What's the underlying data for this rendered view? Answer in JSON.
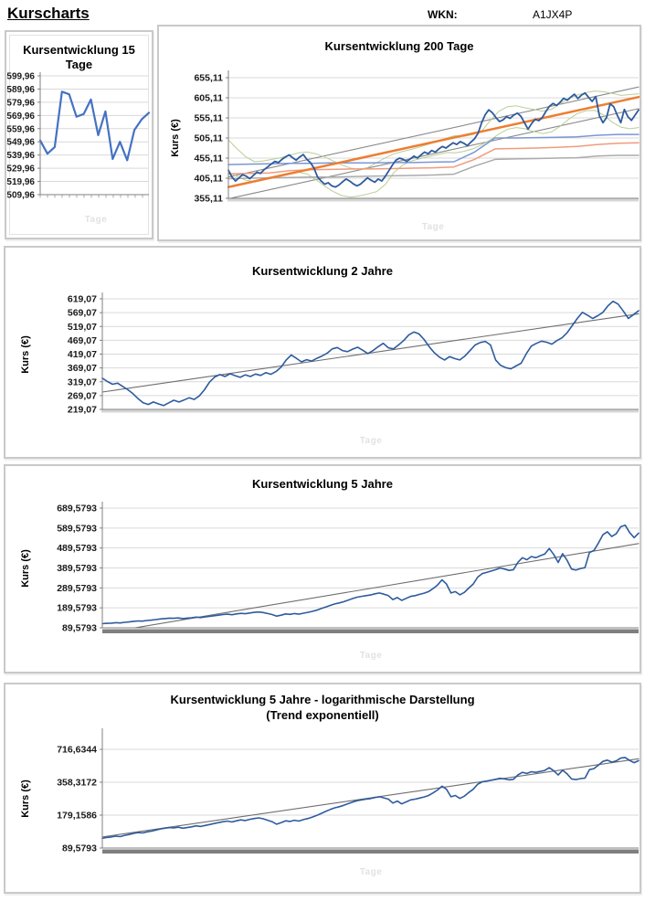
{
  "page": {
    "heading": "Kurscharts",
    "wkn_label": "WKN:",
    "wkn_value": "A1JX4P"
  },
  "ylabel": "Kurs (€)",
  "watermark": "Tage",
  "colors": {
    "price_blue": "#2e5b9e",
    "price_blue_small": "#4472c4",
    "trend_orange": "#ed7d31",
    "trend_gray": "#6e6e6e",
    "band_green": "#b8cf96",
    "level_blue": "#7b96d4",
    "level_salmon": "#f19b7d",
    "level_gray": "#ababab",
    "gridline": "#d9d9d9",
    "axis": "#808080",
    "tick_text": "#1a1a1a",
    "baseline_bar": "#7f7f7f"
  },
  "chart_data": [
    {
      "type": "line",
      "title": "Kursentwicklung 15 Tage",
      "xlabel": "Tage",
      "scale": "linear",
      "axis_style": "comb",
      "comb_step": 8,
      "yticks": [
        {
          "label": "599,96",
          "value": 599.96
        },
        {
          "label": "589,96",
          "value": 589.96
        },
        {
          "label": "579,96",
          "value": 579.96
        },
        {
          "label": "569,96",
          "value": 569.96
        },
        {
          "label": "559,96",
          "value": 559.96
        },
        {
          "label": "549,96",
          "value": 549.96
        },
        {
          "label": "539,96",
          "value": 539.96
        },
        {
          "label": "529,96",
          "value": 529.96
        },
        {
          "label": "519,96",
          "value": 519.96
        },
        {
          "label": "509,96",
          "value": 509.96
        }
      ],
      "series": [
        {
          "name": "kurs",
          "color": "#4472c4",
          "width": 2.2,
          "values": [
            551,
            541,
            546,
            588,
            586,
            569,
            571,
            582,
            555,
            573,
            537,
            550,
            536,
            559,
            567,
            572
          ]
        }
      ]
    },
    {
      "type": "line",
      "title": "Kursentwicklung 200 Tage",
      "xlabel": "Tage",
      "scale": "linear",
      "axis_style": "comb",
      "comb_step": 2,
      "yticks": [
        {
          "label": "655,11",
          "value": 655.11
        },
        {
          "label": "605,11",
          "value": 605.11
        },
        {
          "label": "555,11",
          "value": 555.11
        },
        {
          "label": "505,11",
          "value": 505.11
        },
        {
          "label": "455,11",
          "value": 455.11
        },
        {
          "label": "405,11",
          "value": 405.11
        },
        {
          "label": "355,11",
          "value": 355.11
        }
      ],
      "series": [
        {
          "name": "kanal-oben",
          "color": "#8a8a8a",
          "width": 1.1,
          "values": [
            408,
            632
          ]
        },
        {
          "name": "kanal-unten",
          "color": "#8a8a8a",
          "width": 1.1,
          "values": [
            354,
            578
          ]
        },
        {
          "name": "band-oben",
          "color": "#b8cf96",
          "width": 1,
          "values": [
            500,
            478,
            458,
            446,
            448,
            452,
            456,
            462,
            468,
            470,
            466,
            458,
            448,
            438,
            430,
            427,
            432,
            444,
            456,
            466,
            472,
            477,
            483,
            490,
            497,
            505,
            511,
            509,
            514,
            522,
            548,
            572,
            583,
            585,
            580,
            576,
            572,
            576,
            590,
            604,
            612,
            618,
            622,
            620,
            616,
            611,
            613,
            615
          ]
        },
        {
          "name": "band-unten",
          "color": "#b8cf96",
          "width": 1,
          "values": [
            420,
            409,
            400,
            397,
            401,
            407,
            413,
            418,
            420,
            416,
            402,
            386,
            372,
            362,
            358,
            361,
            366,
            372,
            390,
            420,
            438,
            448,
            454,
            459,
            464,
            469,
            468,
            472,
            478,
            488,
            500,
            515,
            527,
            531,
            528,
            521,
            516,
            520,
            534,
            552,
            566,
            573,
            574,
            562,
            544,
            532,
            528,
            531
          ]
        },
        {
          "name": "level-grau",
          "color": "#ababab",
          "width": 1.5,
          "values": [
            404,
            405,
            406,
            407,
            408,
            408,
            409,
            410,
            411,
            412,
            413,
            415,
            435,
            452,
            453,
            454,
            455,
            456,
            460,
            462,
            462
          ]
        },
        {
          "name": "level-rot",
          "color": "#f19b7d",
          "width": 1.5,
          "values": [
            416,
            417,
            418,
            424,
            426,
            427,
            428,
            428,
            429,
            430,
            431,
            433,
            452,
            478,
            479,
            480,
            482,
            484,
            489,
            492,
            493
          ]
        },
        {
          "name": "level-blau",
          "color": "#7b96d4",
          "width": 1.5,
          "values": [
            439,
            440,
            441,
            442,
            442,
            443,
            443,
            443,
            444,
            444,
            445,
            446,
            470,
            505,
            505,
            506,
            507,
            508,
            512,
            514,
            514
          ]
        },
        {
          "name": "trend",
          "color": "#ed7d31",
          "width": 2.5,
          "values": [
            383,
            607
          ]
        },
        {
          "name": "kurs",
          "color": "#2e5b9e",
          "width": 1.8,
          "values": [
            425,
            408,
            398,
            406,
            414,
            410,
            404,
            412,
            420,
            417,
            426,
            433,
            440,
            447,
            444,
            452,
            458,
            463,
            456,
            450,
            458,
            464,
            452,
            444,
            430,
            408,
            398,
            390,
            394,
            386,
            383,
            388,
            396,
            403,
            398,
            391,
            386,
            390,
            398,
            406,
            400,
            395,
            403,
            398,
            410,
            424,
            438,
            450,
            455,
            452,
            447,
            453,
            460,
            455,
            463,
            470,
            466,
            474,
            470,
            478,
            484,
            480,
            487,
            493,
            489,
            496,
            492,
            486,
            495,
            503,
            517,
            543,
            563,
            575,
            568,
            556,
            546,
            550,
            558,
            554,
            562,
            567,
            559,
            543,
            527,
            541,
            552,
            548,
            556,
            571,
            584,
            591,
            586,
            594,
            604,
            599,
            607,
            614,
            603,
            612,
            617,
            606,
            596,
            608,
            560,
            543,
            556,
            590,
            583,
            562,
            543,
            576,
            558,
            549,
            562,
            575
          ]
        }
      ]
    },
    {
      "type": "line",
      "title": "Kursentwicklung 2 Jahre",
      "xlabel": "Tage",
      "scale": "linear",
      "axis_style": "comb",
      "comb_step": 2,
      "yticks": [
        {
          "label": "619,07",
          "value": 619.07
        },
        {
          "label": "569,07",
          "value": 569.07
        },
        {
          "label": "519,07",
          "value": 519.07
        },
        {
          "label": "469,07",
          "value": 469.07
        },
        {
          "label": "419,07",
          "value": 419.07
        },
        {
          "label": "369,07",
          "value": 369.07
        },
        {
          "label": "319,07",
          "value": 319.07
        },
        {
          "label": "269,07",
          "value": 269.07
        },
        {
          "label": "219,07",
          "value": 219.07
        }
      ],
      "series": [
        {
          "name": "trend",
          "color": "#6e6e6e",
          "width": 1.1,
          "values": [
            282,
            565
          ]
        },
        {
          "name": "kurs",
          "color": "#2e5b9e",
          "width": 1.6,
          "values": [
            332,
            320,
            310,
            314,
            302,
            290,
            276,
            258,
            243,
            237,
            246,
            239,
            233,
            243,
            252,
            246,
            253,
            261,
            255,
            268,
            290,
            318,
            336,
            345,
            338,
            348,
            341,
            335,
            344,
            338,
            347,
            342,
            352,
            346,
            356,
            372,
            398,
            416,
            404,
            391,
            399,
            394,
            404,
            412,
            422,
            438,
            443,
            432,
            428,
            437,
            444,
            433,
            421,
            432,
            446,
            458,
            442,
            438,
            452,
            468,
            488,
            499,
            492,
            472,
            446,
            424,
            408,
            398,
            410,
            403,
            398,
            412,
            432,
            452,
            461,
            465,
            452,
            398,
            378,
            370,
            366,
            376,
            386,
            420,
            448,
            458,
            466,
            462,
            455,
            468,
            478,
            496,
            522,
            548,
            570,
            560,
            548,
            558,
            570,
            594,
            610,
            600,
            575,
            548,
            562,
            576
          ]
        }
      ]
    },
    {
      "type": "line",
      "title": "Kursentwicklung 5 Jahre",
      "xlabel": "Tage",
      "scale": "linear",
      "axis_style": "bar",
      "yticks": [
        {
          "label": "689,5793",
          "value": 689.5793
        },
        {
          "label": "589,5793",
          "value": 589.5793
        },
        {
          "label": "489,5793",
          "value": 489.5793
        },
        {
          "label": "389,5793",
          "value": 389.5793
        },
        {
          "label": "289,5793",
          "value": 289.5793
        },
        {
          "label": "189,5793",
          "value": 189.5793
        },
        {
          "label": "89,5793",
          "value": 89.5793
        }
      ],
      "series": [
        {
          "name": "trend",
          "color": "#6e6e6e",
          "width": 1.1,
          "values": [
            62,
            512
          ]
        },
        {
          "name": "kurs",
          "color": "#2e5b9e",
          "width": 1.6,
          "values": [
            110,
            112,
            113,
            115,
            114,
            117,
            119,
            122,
            124,
            123,
            126,
            128,
            131,
            134,
            136,
            138,
            137,
            139,
            136,
            138,
            140,
            143,
            141,
            144,
            147,
            150,
            153,
            156,
            158,
            155,
            159,
            162,
            160,
            164,
            167,
            169,
            166,
            161,
            156,
            148,
            153,
            159,
            157,
            161,
            158,
            163,
            167,
            172,
            178,
            186,
            194,
            202,
            209,
            214,
            220,
            228,
            236,
            243,
            247,
            251,
            254,
            260,
            264,
            258,
            251,
            231,
            241,
            227,
            237,
            247,
            251,
            257,
            263,
            271,
            286,
            304,
            330,
            309,
            264,
            271,
            255,
            267,
            289,
            309,
            344,
            361,
            367,
            374,
            381,
            389,
            384,
            377,
            381,
            418,
            441,
            431,
            447,
            441,
            451,
            459,
            487,
            457,
            417,
            461,
            428,
            384,
            379,
            387,
            391,
            467,
            477,
            514,
            556,
            571,
            547,
            561,
            596,
            604,
            567,
            541,
            564
          ]
        }
      ]
    },
    {
      "type": "line",
      "title": "Kursentwicklung 5 Jahre - logarithmische Darstellung",
      "subtitle": "(Trend exponentiell)",
      "xlabel": "Tage",
      "scale": "log",
      "axis_style": "bar",
      "yticks": [
        {
          "label": "716,6344",
          "value": 716.6344
        },
        {
          "label": "358,3172",
          "value": 358.3172
        },
        {
          "label": "179,1586",
          "value": 179.1586
        },
        {
          "label": "89,5793",
          "value": 89.5793
        }
      ],
      "series": [
        {
          "name": "trend-exponentiell",
          "color": "#6e6e6e",
          "width": 1.1,
          "values": [
            113,
            588
          ]
        },
        {
          "name": "kurs",
          "color": "#2e5b9e",
          "width": 1.6,
          "values": [
            110,
            112,
            113,
            115,
            114,
            117,
            119,
            122,
            124,
            123,
            126,
            128,
            131,
            134,
            136,
            138,
            137,
            139,
            136,
            138,
            140,
            143,
            141,
            144,
            147,
            150,
            153,
            156,
            158,
            155,
            159,
            162,
            160,
            164,
            167,
            169,
            166,
            161,
            156,
            148,
            153,
            159,
            157,
            161,
            158,
            163,
            167,
            172,
            178,
            186,
            194,
            202,
            209,
            214,
            220,
            228,
            236,
            243,
            247,
            251,
            254,
            260,
            264,
            258,
            251,
            231,
            241,
            227,
            237,
            247,
            251,
            257,
            263,
            271,
            286,
            304,
            330,
            309,
            264,
            271,
            255,
            267,
            289,
            309,
            344,
            361,
            367,
            374,
            381,
            389,
            384,
            377,
            381,
            418,
            441,
            431,
            447,
            441,
            451,
            459,
            487,
            457,
            417,
            461,
            428,
            384,
            379,
            387,
            391,
            467,
            477,
            514,
            556,
            571,
            547,
            561,
            596,
            604,
            567,
            541,
            564
          ]
        }
      ]
    }
  ]
}
